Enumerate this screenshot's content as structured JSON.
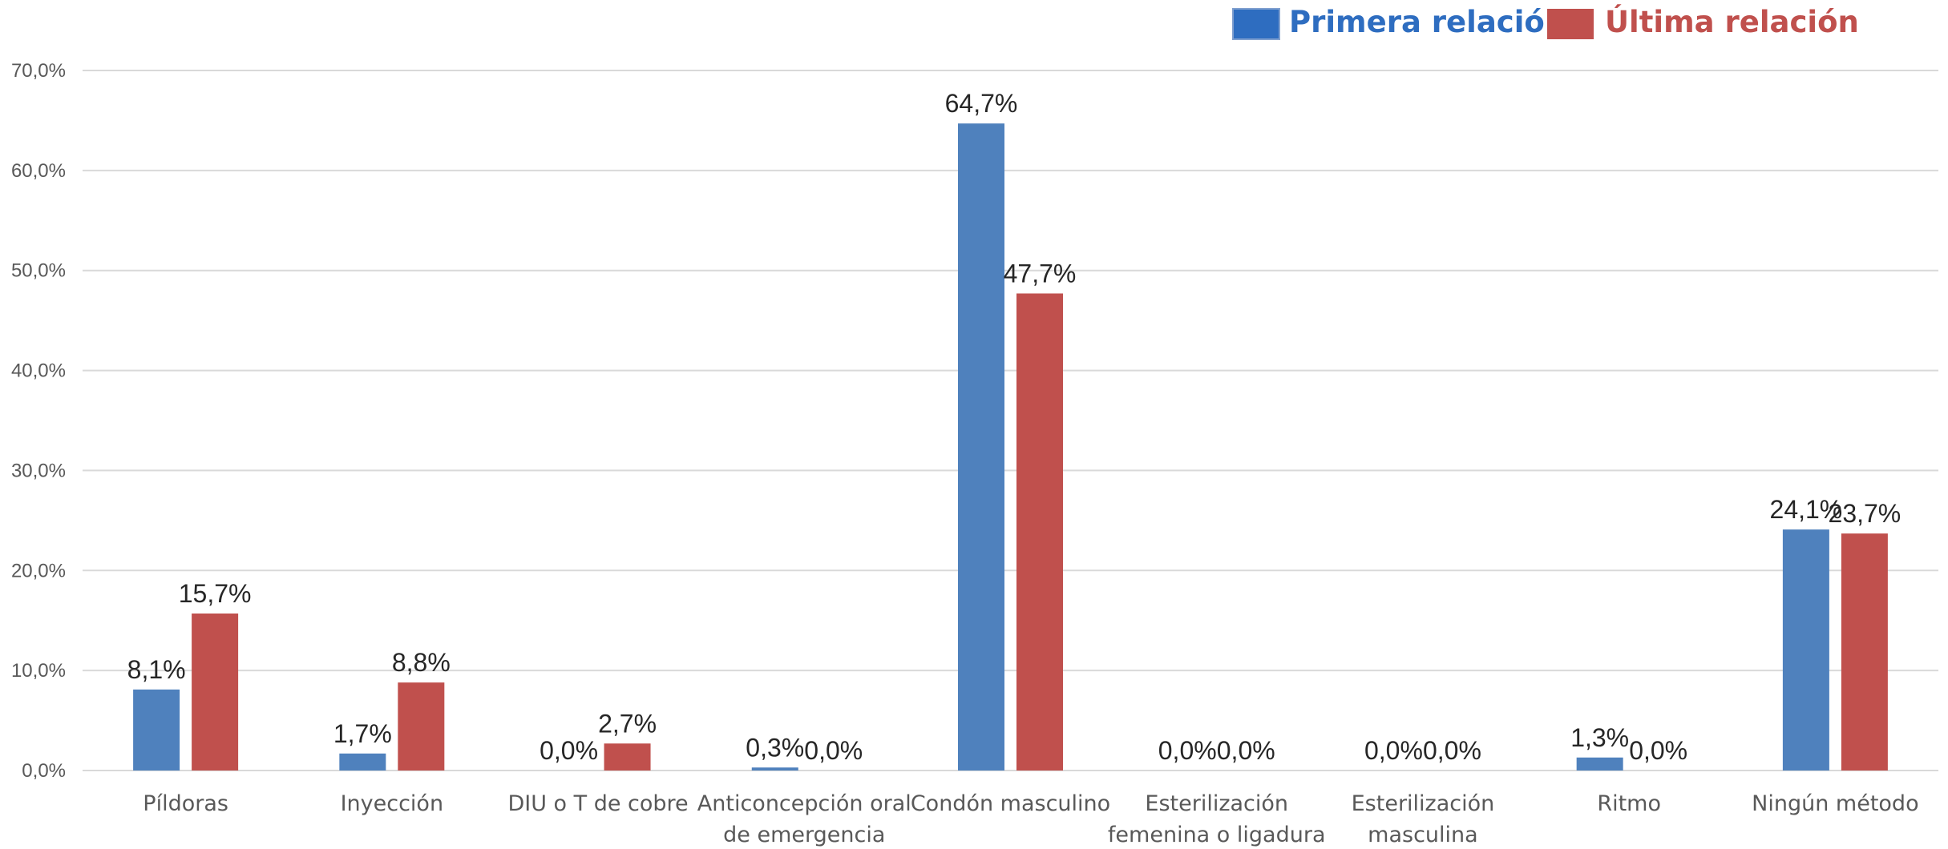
{
  "chart_data": {
    "type": "bar",
    "title": "",
    "xlabel": "",
    "ylabel": "",
    "ylim": [
      0,
      70
    ],
    "yticks": [
      0,
      10,
      20,
      30,
      40,
      50,
      60,
      70
    ],
    "ytick_labels": [
      "0,0%",
      "10,0%",
      "20,0%",
      "30,0%",
      "40,0%",
      "50,0%",
      "60,0%",
      "70,0%"
    ],
    "grid": true,
    "legend_position": "top-right",
    "categories": [
      [
        "Píldoras"
      ],
      [
        "Inyección"
      ],
      [
        "DIU o T de cobre"
      ],
      [
        "Anticoncepción oral",
        "de emergencia"
      ],
      [
        "Condón masculino"
      ],
      [
        "Esterilización",
        "femenina o ligadura"
      ],
      [
        "Esterilización",
        "masculina"
      ],
      [
        "Ritmo"
      ],
      [
        "Ningún método"
      ]
    ],
    "series": [
      {
        "name": "Primera relación",
        "color": "#4f81bd",
        "legend_color": "#2e6dc0",
        "values": [
          8.1,
          1.7,
          0.0,
          0.3,
          64.7,
          0.0,
          0.0,
          1.3,
          24.1
        ],
        "labels": [
          "8,1%",
          "1,7%",
          "0,0%",
          "0,3%",
          "64,7%",
          "0,0%",
          "0,0%",
          "1,3%",
          "24,1%"
        ]
      },
      {
        "name": "Última relación",
        "color": "#c0504d",
        "legend_color": "#c0504d",
        "values": [
          15.7,
          8.8,
          2.7,
          0.0,
          47.7,
          0.0,
          0.0,
          0.0,
          23.7
        ],
        "labels": [
          "15,7%",
          "8,8%",
          "2,7%",
          "0,0%",
          "47,7%",
          "0,0%",
          "0,0%",
          "0,0%",
          "23,7%"
        ]
      }
    ]
  }
}
